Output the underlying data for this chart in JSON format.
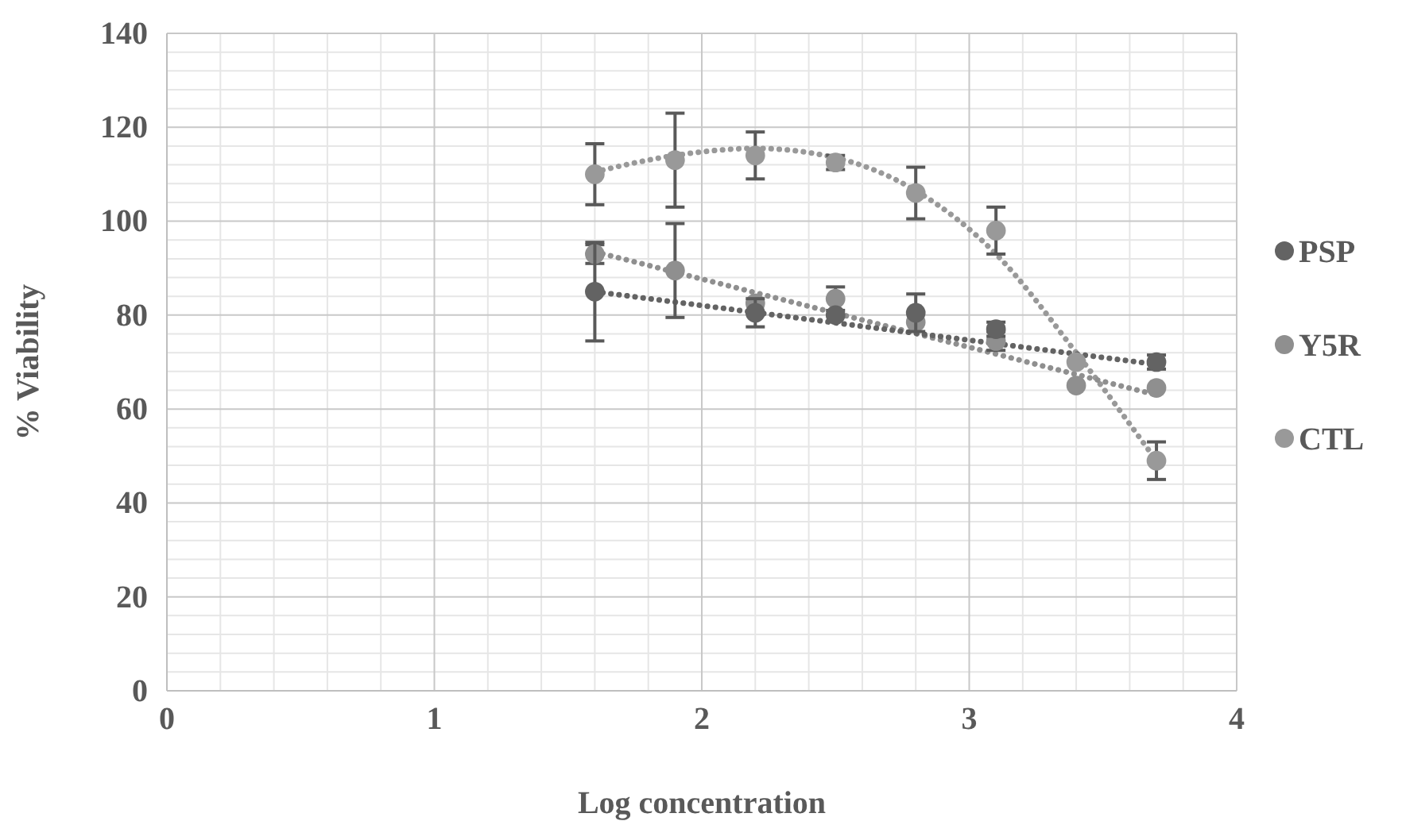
{
  "chart_data": {
    "type": "scatter",
    "xlabel": "Log concentration",
    "ylabel": "% Viability",
    "xlim": [
      0,
      4
    ],
    "xticks": [
      0,
      1,
      2,
      3,
      4
    ],
    "ylim": [
      0,
      140
    ],
    "yticks": [
      0,
      20,
      40,
      60,
      80,
      100,
      120,
      140
    ],
    "grid": true,
    "legend": "right",
    "marker": "circle",
    "x": [
      1.6,
      1.9,
      2.2,
      2.5,
      2.8,
      3.1,
      3.4,
      3.7
    ],
    "series": [
      {
        "name": "PSP",
        "color": "#636363",
        "values": [
          85,
          null,
          80.5,
          80,
          80.5,
          77,
          null,
          70
        ],
        "errors": [
          10.5,
          null,
          3,
          null,
          4,
          1.5,
          null,
          1.5
        ]
      },
      {
        "name": "Y5R",
        "color": "#8f8f8f",
        "values": [
          93,
          89.5,
          82.5,
          83.5,
          78.5,
          74.5,
          65,
          64.5
        ],
        "errors": [
          2,
          10,
          null,
          2.5,
          null,
          2,
          null,
          null
        ]
      },
      {
        "name": "CTL",
        "color": "#999999",
        "values": [
          110,
          113,
          114,
          112.5,
          106,
          98,
          70,
          49
        ],
        "errors": [
          6.5,
          10,
          5,
          1.5,
          5.5,
          5,
          null,
          4
        ]
      },
      {
        "type": "line",
        "color": "#636363",
        "line_style": "dotted",
        "marker": "none",
        "x": [
          1.6,
          3.7
        ],
        "values": [
          85,
          69.5
        ]
      },
      {
        "type": "line",
        "color": "#8f8f8f",
        "line_style": "dotted",
        "marker": "none",
        "x": [
          1.6,
          3.7
        ],
        "values": [
          93.5,
          63
        ]
      },
      {
        "type": "line",
        "color": "#999999",
        "line_style": "dotted",
        "marker": "none",
        "x": [
          1.6,
          1.9,
          2.2,
          2.5,
          2.8,
          3.1,
          3.4,
          3.7
        ],
        "values": [
          110.5,
          114,
          115.5,
          113.5,
          106.5,
          93,
          72,
          49
        ]
      }
    ]
  }
}
